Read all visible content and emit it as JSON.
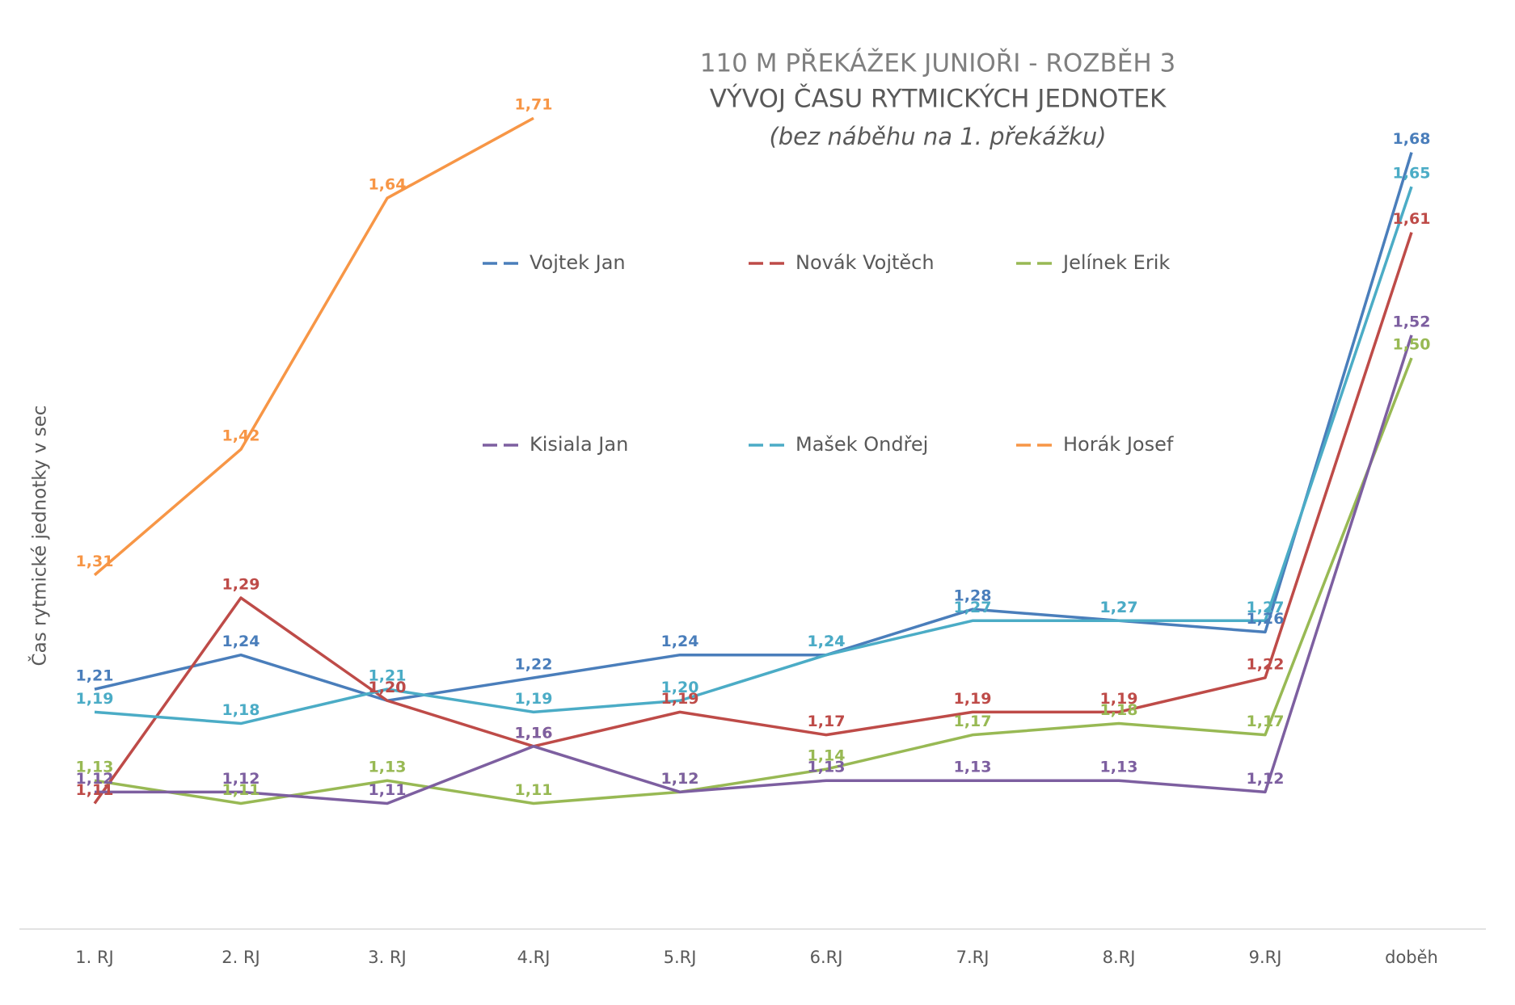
{
  "chart_data": {
    "type": "line",
    "title": "110 M PŘEKÁŽEK JUNIOŘI - ROZBĚH 3",
    "subtitle": "VÝVOJ ČASU RYTMICKÝCH JEDNOTEK",
    "annotation": "(bez náběhu na 1. překážku)",
    "y_label": "Čas rytmické jednotky v sec",
    "categories": [
      "1. RJ",
      "2. RJ",
      "3. RJ",
      "4.RJ",
      "5.RJ",
      "6.RJ",
      "7.RJ",
      "8.RJ",
      "9.RJ",
      "doběh"
    ],
    "ylim": [
      1.0,
      1.8
    ],
    "legend": "top",
    "series": [
      {
        "name": "Vojtek Jan",
        "color": "#4a7ebb",
        "values": [
          1.21,
          1.24,
          1.2,
          1.22,
          1.24,
          1.24,
          1.28,
          1.27,
          1.26,
          1.68
        ],
        "value_labels": [
          "1,21",
          "1,24",
          "1,20",
          "1,22",
          "1,24",
          "1,24",
          "1,28",
          "1,27",
          "1,26",
          "1,68"
        ]
      },
      {
        "name": "Novák Vojtěch",
        "color": "#be4b48",
        "values": [
          1.11,
          1.29,
          1.2,
          1.16,
          1.19,
          1.17,
          1.19,
          1.19,
          1.22,
          1.61
        ],
        "value_labels": [
          "1,11",
          "1,29",
          "1,20",
          "1,16",
          "1,19",
          "1,17",
          "1,19",
          "1,19",
          "1,22",
          "1,61"
        ]
      },
      {
        "name": "Jelínek Erik",
        "color": "#98b954",
        "values": [
          1.13,
          1.11,
          1.13,
          1.11,
          1.12,
          1.14,
          1.17,
          1.18,
          1.17,
          1.5
        ],
        "value_labels": [
          "1,13",
          "1,11",
          "1,13",
          "1,11",
          "1,12",
          "1,14",
          "1,17",
          "1,18",
          "1,17",
          "1,50"
        ]
      },
      {
        "name": "Kisiala Jan",
        "color": "#7d5fa0",
        "values": [
          1.12,
          1.12,
          1.11,
          1.16,
          1.12,
          1.13,
          1.13,
          1.13,
          1.12,
          1.52
        ],
        "value_labels": [
          "1,12",
          "1,12",
          "1,11",
          "1,16",
          "1,12",
          "1,13",
          "1,13",
          "1,13",
          "1,12",
          "1,52"
        ]
      },
      {
        "name": "Mašek Ondřej",
        "color": "#4bacc6",
        "values": [
          1.19,
          1.18,
          1.21,
          1.19,
          1.2,
          1.24,
          1.27,
          1.27,
          1.27,
          1.65
        ],
        "value_labels": [
          "1,19",
          "1,18",
          "1,21",
          "1,19",
          "1,20",
          "1,24",
          "1,27",
          "1,27",
          "1,27",
          "1,65"
        ]
      },
      {
        "name": "Horák Josef",
        "color": "#f79646",
        "values": [
          1.31,
          1.42,
          1.64,
          1.71,
          null,
          null,
          null,
          null,
          null,
          null
        ],
        "value_labels": [
          "1,31",
          "1,42",
          "1,64",
          "1,71",
          null,
          null,
          null,
          null,
          null,
          null
        ]
      }
    ]
  }
}
